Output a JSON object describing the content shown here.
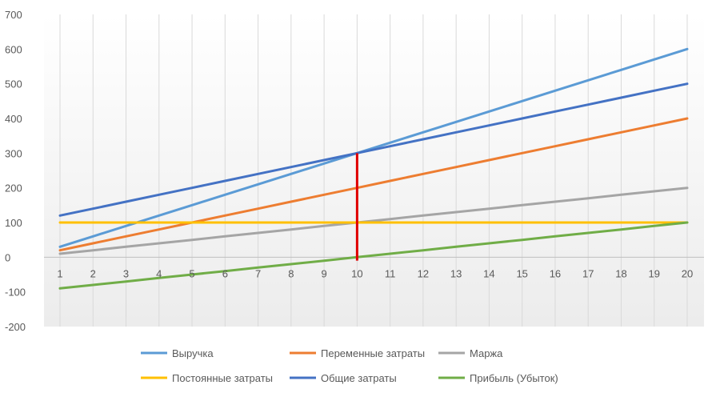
{
  "chart_data": {
    "type": "line",
    "title": "",
    "xlabel": "",
    "ylabel": "",
    "categories": [
      1,
      2,
      3,
      4,
      5,
      6,
      7,
      8,
      9,
      10,
      11,
      12,
      13,
      14,
      15,
      16,
      17,
      18,
      19,
      20
    ],
    "ylim": [
      -200,
      700
    ],
    "y_ticks": [
      700,
      600,
      500,
      400,
      300,
      200,
      100,
      0,
      -100,
      -200
    ],
    "grid": "vertical",
    "legend_position": "bottom",
    "series": [
      {
        "name": "Выручка",
        "color": "#5b9bd5",
        "values": [
          30,
          60,
          90,
          120,
          150,
          180,
          210,
          240,
          270,
          300,
          330,
          360,
          390,
          420,
          450,
          480,
          510,
          540,
          570,
          600
        ]
      },
      {
        "name": "Переменные затраты",
        "color": "#ed7d31",
        "values": [
          20,
          40,
          60,
          80,
          100,
          120,
          140,
          160,
          180,
          200,
          220,
          240,
          260,
          280,
          300,
          320,
          340,
          360,
          380,
          400
        ]
      },
      {
        "name": "Маржа",
        "color": "#a5a5a5",
        "values": [
          10,
          20,
          30,
          40,
          50,
          60,
          70,
          80,
          90,
          100,
          110,
          120,
          130,
          140,
          150,
          160,
          170,
          180,
          190,
          200
        ]
      },
      {
        "name": "Постоянные затраты",
        "color": "#ffc000",
        "values": [
          100,
          100,
          100,
          100,
          100,
          100,
          100,
          100,
          100,
          100,
          100,
          100,
          100,
          100,
          100,
          100,
          100,
          100,
          100,
          100
        ]
      },
      {
        "name": "Общие затраты",
        "color": "#4472c4",
        "values": [
          120,
          140,
          160,
          180,
          200,
          220,
          240,
          260,
          280,
          300,
          320,
          340,
          360,
          380,
          400,
          420,
          440,
          460,
          480,
          500
        ]
      },
      {
        "name": "Прибыль (Убыток)",
        "color": "#70ad47",
        "values": [
          -90,
          -80,
          -70,
          -60,
          -50,
          -40,
          -30,
          -20,
          -10,
          0,
          10,
          20,
          30,
          40,
          50,
          60,
          70,
          80,
          90,
          100
        ]
      }
    ],
    "break_even_marker": {
      "x": 10,
      "y_from": -10,
      "y_to": 300,
      "color": "#e00000"
    }
  }
}
